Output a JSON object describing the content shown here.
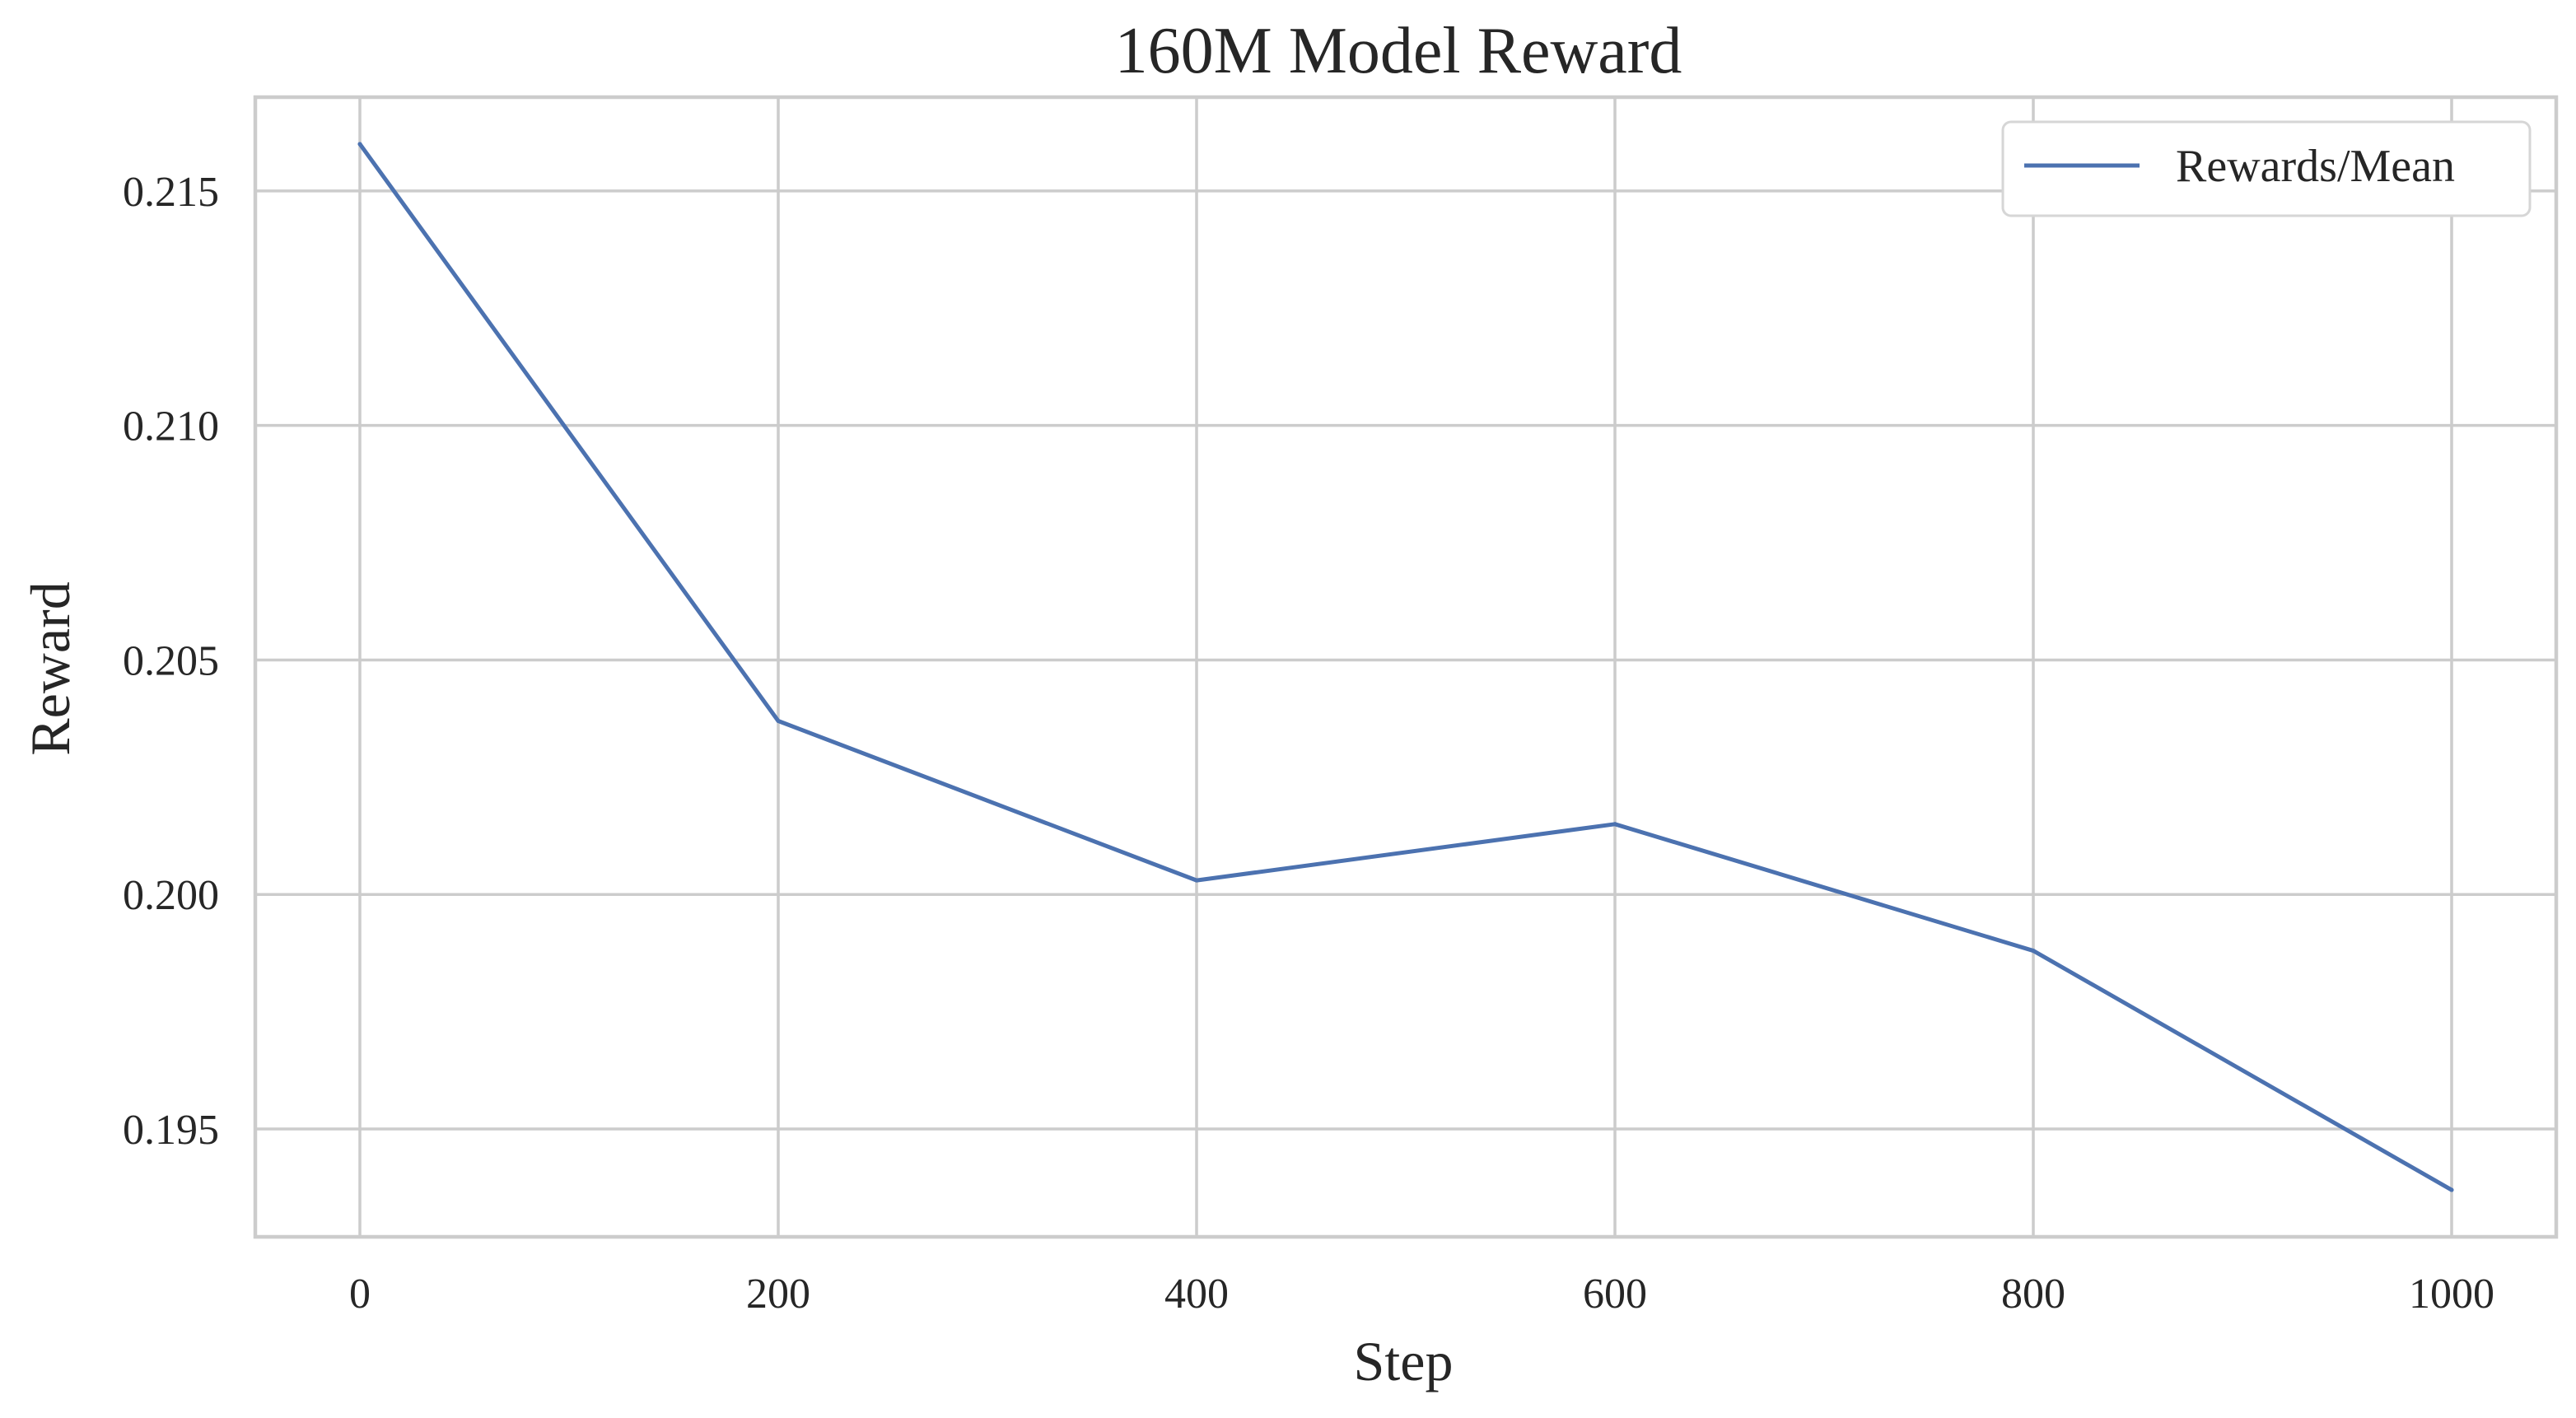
{
  "chart_data": {
    "type": "line",
    "title": "160M Model Reward",
    "xlabel": "Step",
    "ylabel": "Reward",
    "x": [
      0,
      200,
      400,
      600,
      800,
      1000
    ],
    "series": [
      {
        "name": "Rewards/Mean",
        "color": "#4c72b0",
        "values": [
          0.216,
          0.2037,
          0.2003,
          0.2015,
          0.1988,
          0.1937
        ]
      }
    ],
    "xlim": [
      -50,
      1050
    ],
    "ylim": [
      0.1927,
      0.217
    ],
    "xticks": [
      0,
      200,
      400,
      600,
      800,
      1000
    ],
    "xtick_labels": [
      "0",
      "200",
      "400",
      "600",
      "800",
      "1000"
    ],
    "yticks": [
      0.195,
      0.2,
      0.205,
      0.21,
      0.215
    ],
    "ytick_labels": [
      "0.195",
      "0.200",
      "0.205",
      "0.210",
      "0.215"
    ],
    "grid": true,
    "legend_position": "top-right"
  }
}
